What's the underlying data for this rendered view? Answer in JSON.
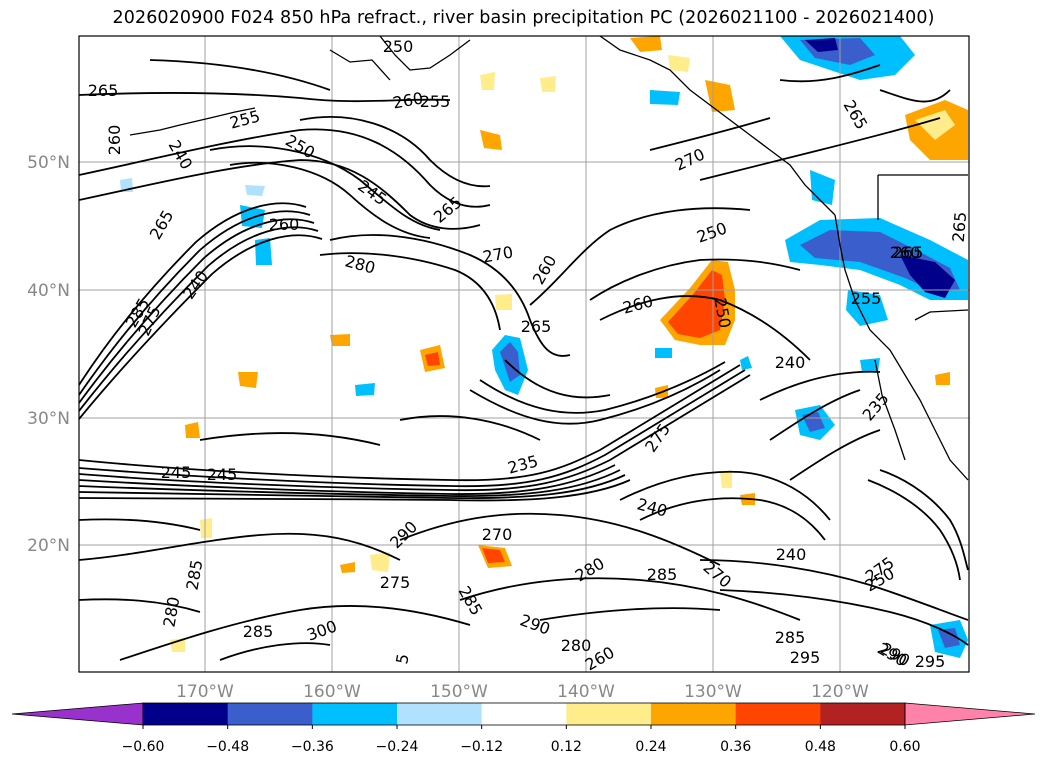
{
  "title": "2026020900 F024 850 hPa refract., river basin precipitation PC (2026021100 - 2026021400)",
  "map": {
    "lat_labels": [
      "50°N",
      "40°N",
      "30°N",
      "20°N"
    ],
    "lon_labels": [
      "170°W",
      "160°W",
      "150°W",
      "140°W",
      "130°W",
      "120°W"
    ],
    "contour_labels": [
      {
        "v": "250"
      },
      {
        "v": "265"
      },
      {
        "v": "260"
      },
      {
        "v": "255"
      },
      {
        "v": "260"
      },
      {
        "v": "240"
      },
      {
        "v": "255"
      },
      {
        "v": "250"
      },
      {
        "v": "245"
      },
      {
        "v": "265"
      },
      {
        "v": "265"
      },
      {
        "v": "260"
      },
      {
        "v": "280"
      },
      {
        "v": "270"
      },
      {
        "v": "270"
      },
      {
        "v": "250"
      },
      {
        "v": "265"
      },
      {
        "v": "260"
      },
      {
        "v": "265"
      },
      {
        "v": "260"
      },
      {
        "v": "255"
      },
      {
        "v": "250"
      },
      {
        "v": "265"
      },
      {
        "v": "285"
      },
      {
        "v": "240"
      },
      {
        "v": "260"
      },
      {
        "v": "275"
      },
      {
        "v": "240"
      },
      {
        "v": "245"
      },
      {
        "v": "235"
      },
      {
        "v": "245"
      },
      {
        "v": "235"
      },
      {
        "v": "275"
      },
      {
        "v": "240"
      },
      {
        "v": "290"
      },
      {
        "v": "270"
      },
      {
        "v": "275"
      },
      {
        "v": "280"
      },
      {
        "v": "285"
      },
      {
        "v": "270"
      },
      {
        "v": "240"
      },
      {
        "v": "250"
      },
      {
        "v": "285"
      },
      {
        "v": "280"
      },
      {
        "v": "285"
      },
      {
        "v": "300"
      },
      {
        "v": "285"
      },
      {
        "v": "290"
      },
      {
        "v": "275"
      },
      {
        "v": "280"
      },
      {
        "v": "285"
      },
      {
        "v": "295"
      },
      {
        "v": "290"
      },
      {
        "v": "295"
      },
      {
        "v": "290"
      },
      {
        "v": "260"
      },
      {
        "v": "5"
      },
      {
        "v": "265"
      }
    ]
  },
  "colorbar": {
    "ticks": [
      "−0.60",
      "−0.48",
      "−0.36",
      "−0.24",
      "−0.12",
      "0.12",
      "0.24",
      "0.36",
      "0.48",
      "0.60"
    ],
    "bins": [
      {
        "range": "< -0.60",
        "color": "#9932cc"
      },
      {
        "range": "-0.60 to -0.48",
        "color": "#00008b"
      },
      {
        "range": "-0.48 to -0.36",
        "color": "#3a5fcd"
      },
      {
        "range": "-0.36 to -0.24",
        "color": "#00bfff"
      },
      {
        "range": "-0.24 to -0.12",
        "color": "#b0e2ff"
      },
      {
        "range": "-0.12 to 0.12",
        "color": "#ffffff"
      },
      {
        "range": "0.12 to 0.24",
        "color": "#ffec8b"
      },
      {
        "range": "0.24 to 0.36",
        "color": "#ffa500"
      },
      {
        "range": "0.36 to 0.48",
        "color": "#ff4500"
      },
      {
        "range": "0.48 to 0.60",
        "color": "#b22222"
      },
      {
        "range": "> 0.60",
        "color": "#ff82ab"
      }
    ]
  }
}
